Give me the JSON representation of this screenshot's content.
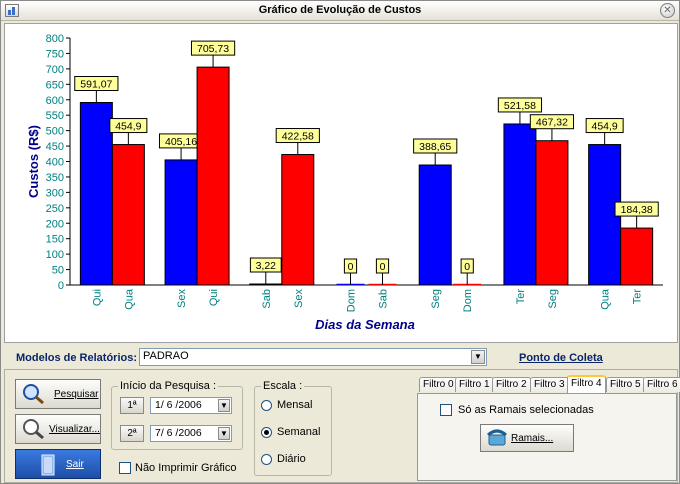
{
  "window": {
    "title": "Gráfico de Evolução de Custos"
  },
  "chart_data": {
    "type": "bar",
    "title": "",
    "ylabel": "Custos (R$)",
    "xlabel": "Dias da Semana",
    "ylim": [
      0,
      800
    ],
    "yticks": [
      0,
      50,
      100,
      150,
      200,
      250,
      300,
      350,
      400,
      450,
      500,
      550,
      600,
      650,
      700,
      750,
      800
    ],
    "grid": false,
    "bars": [
      {
        "label": "Qui",
        "value": 591.07,
        "value_label": "591,07",
        "color": "#0000ff"
      },
      {
        "label": "Qua",
        "value": 454.9,
        "value_label": "454,9",
        "color": "#ff0000"
      },
      {
        "label": "Sex",
        "value": 405.16,
        "value_label": "405,16",
        "color": "#0000ff"
      },
      {
        "label": "Qui",
        "value": 705.73,
        "value_label": "705,73",
        "color": "#ff0000"
      },
      {
        "label": "Sab",
        "value": 3.22,
        "value_label": "3,22",
        "color": "#0000ff"
      },
      {
        "label": "Sex",
        "value": 422.58,
        "value_label": "422,58",
        "color": "#ff0000"
      },
      {
        "label": "Dom",
        "value": 0,
        "value_label": "0",
        "color": "#0000ff"
      },
      {
        "label": "Sab",
        "value": 0,
        "value_label": "0",
        "color": "#ff0000"
      },
      {
        "label": "Seg",
        "value": 388.65,
        "value_label": "388,65",
        "color": "#0000ff"
      },
      {
        "label": "Dom",
        "value": 0,
        "value_label": "0",
        "color": "#ff0000"
      },
      {
        "label": "Ter",
        "value": 521.58,
        "value_label": "521,58",
        "color": "#0000ff"
      },
      {
        "label": "Seg",
        "value": 467.32,
        "value_label": "467,32",
        "color": "#ff0000"
      },
      {
        "label": "Qua",
        "value": 454.9,
        "value_label": "454,9",
        "color": "#0000ff"
      },
      {
        "label": "Ter",
        "value": 184.38,
        "value_label": "184,38",
        "color": "#ff0000"
      }
    ]
  },
  "modelos": {
    "label": "Modelos de Relatórios:",
    "value": "PADRAO"
  },
  "ponto_coleta": "Ponto de Coleta",
  "buttons": {
    "pesquisar": "Pesquisar",
    "visualizar": "Visualizar...",
    "sair": "Sair"
  },
  "inicio": {
    "title": "Início da Pesquisa :",
    "first_btn": "1ª",
    "first_date": "1/ 6 /2006",
    "second_btn": "2ª",
    "second_date": "7/ 6 /2006"
  },
  "escala": {
    "title": "Escala :",
    "options": [
      "Mensal",
      "Semanal",
      "Diário"
    ],
    "selected": "Semanal"
  },
  "nao_imprimir": "Não Imprimir Gráfico",
  "tabs": [
    "Filtro 0",
    "Filtro 1",
    "Filtro 2",
    "Filtro 3",
    "Filtro 4",
    "Filtro 5",
    "Filtro 6"
  ],
  "active_tab": "Filtro 4",
  "filtro": {
    "checkbox_label": "Só as Ramais selecionadas",
    "ramais_button": "Ramais..."
  },
  "colors": {
    "blue_series": "#0000ff",
    "red_series": "#ff0000",
    "axis_text": "#008080",
    "title_blue": "#0a246a"
  }
}
